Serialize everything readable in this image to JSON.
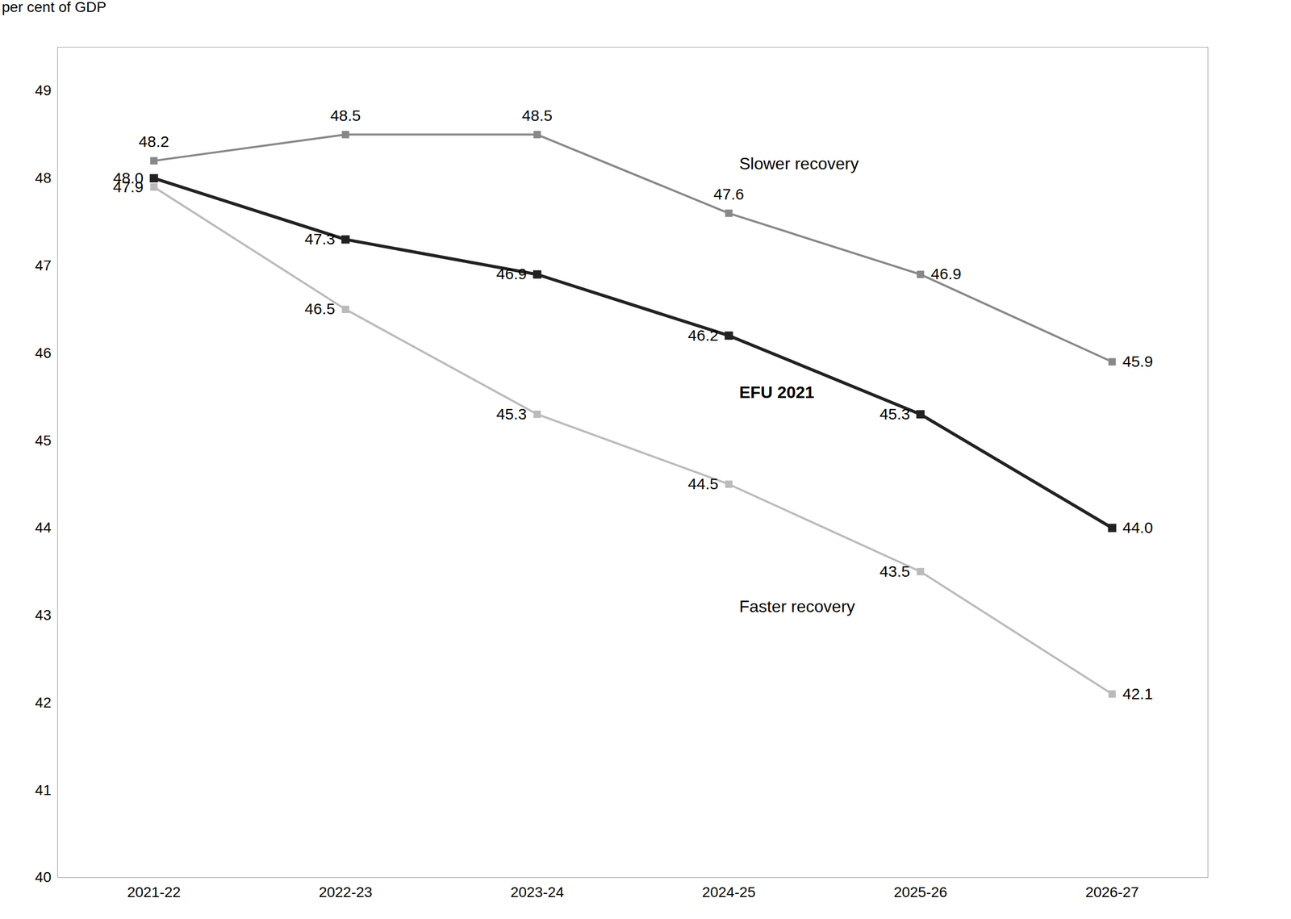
{
  "chart_data": {
    "type": "line",
    "categories": [
      "2021-22",
      "2022-23",
      "2023-24",
      "2024-25",
      "2025-26",
      "2026-27"
    ],
    "series": [
      {
        "name": "Slower recovery",
        "color": "#888888",
        "values": [
          48.2,
          48.5,
          48.5,
          47.6,
          46.9,
          45.9
        ]
      },
      {
        "name": "EFU 2021",
        "color": "#222222",
        "values": [
          48.0,
          47.3,
          46.9,
          46.2,
          45.3,
          44.0
        ],
        "value_labels": [
          "48.0",
          "47.3",
          "46.9",
          "46.2",
          "45.3",
          "44.0"
        ]
      },
      {
        "name": "Faster recovery",
        "color": "#bbbbbb",
        "values": [
          47.9,
          46.5,
          45.3,
          44.5,
          43.5,
          42.1
        ]
      }
    ],
    "ylabel": "per cent of GDP",
    "ylim": [
      40,
      49.5
    ],
    "yticks": [
      40,
      41,
      42,
      43,
      44,
      45,
      46,
      47,
      48,
      49
    ],
    "grid": false,
    "data_labels": true,
    "marker": "square"
  }
}
